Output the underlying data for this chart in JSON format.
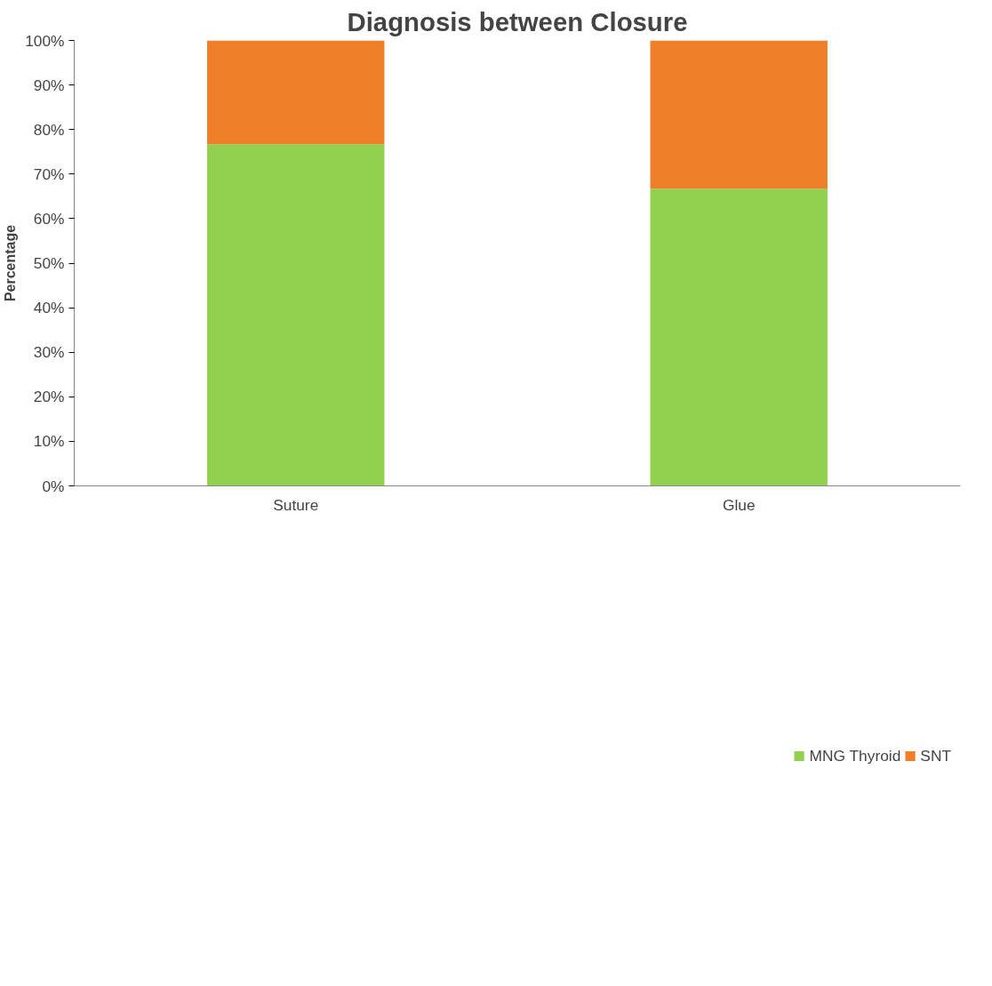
{
  "chart_data": {
    "type": "bar",
    "stacked": true,
    "title": "Diagnosis between Closure",
    "ylabel": "Percentage",
    "categories": [
      "Suture",
      "Glue"
    ],
    "series": [
      {
        "name": "MNG Thyroid",
        "color": "#92d050",
        "values": [
          76.7,
          66.7
        ]
      },
      {
        "name": "SNT",
        "color": "#f07f2c",
        "values": [
          23.3,
          33.3
        ]
      }
    ],
    "ylim": [
      0,
      100
    ],
    "yticks": [
      {
        "value": 0,
        "label": "0%"
      },
      {
        "value": 10,
        "label": "10%"
      },
      {
        "value": 20,
        "label": "20%"
      },
      {
        "value": 30,
        "label": "30%"
      },
      {
        "value": 40,
        "label": "40%"
      },
      {
        "value": 50,
        "label": "50%"
      },
      {
        "value": 60,
        "label": "60%"
      },
      {
        "value": 70,
        "label": "70%"
      },
      {
        "value": 80,
        "label": "80%"
      },
      {
        "value": 90,
        "label": "90%"
      },
      {
        "value": 100,
        "label": "100%"
      }
    ],
    "grid": false,
    "legend": "bottom"
  }
}
